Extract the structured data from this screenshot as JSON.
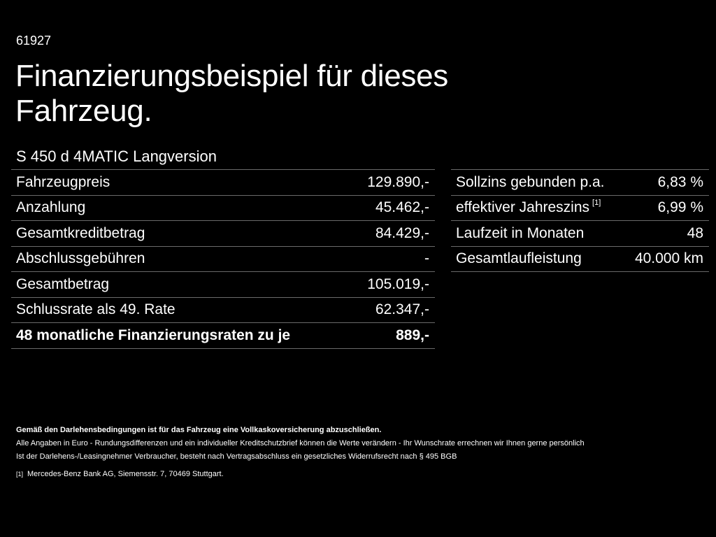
{
  "code": "61927",
  "title": "Finanzierungsbeispiel für dieses Fahrzeug.",
  "model": "S 450 d 4MATIC Langversion",
  "left_table": [
    {
      "label": "Fahrzeugpreis",
      "value": "129.890,-"
    },
    {
      "label": "Anzahlung",
      "value": "45.462,-"
    },
    {
      "label": "Gesamtkreditbetrag",
      "value": "84.429,-"
    },
    {
      "label": "Abschlussgebühren",
      "value": "-"
    },
    {
      "label": "Gesamtbetrag",
      "value": "105.019,-"
    },
    {
      "label": "Schlussrate als 49. Rate",
      "value": "62.347,-"
    },
    {
      "label": "48 monatliche Finanzierungsraten zu je",
      "value": "889,-"
    }
  ],
  "right_table": [
    {
      "label": "Sollzins gebunden p.a.",
      "value": "6,83 %"
    },
    {
      "label": "effektiver Jahreszins",
      "footnote": "[1]",
      "value": "6,99 %"
    },
    {
      "label": "Laufzeit in Monaten",
      "value": "48"
    },
    {
      "label": "Gesamtlaufleistung",
      "value": "40.000 km"
    }
  ],
  "notes": {
    "insurance": "Gemäß den Darlehensbedingungen ist für das Fahrzeug eine Vollkaskoversicherung abzuschließen.",
    "euro": "Alle Angaben in Euro - Rundungsdifferenzen und ein individueller Kreditschutzbrief können die Werte verändern - Ihr Wunschrate errechnen wir Ihnen gerne persönlich",
    "consumer": "Ist der Darlehens-/Leasingnehmer Verbraucher, besteht nach Vertragsabschluss ein gesetzliches Widerrufsrecht nach § 495 BGB",
    "footnote_mark": "[1]",
    "footnote_text": "Mercedes-Benz Bank AG, Siemensstr. 7, 70469 Stuttgart."
  }
}
